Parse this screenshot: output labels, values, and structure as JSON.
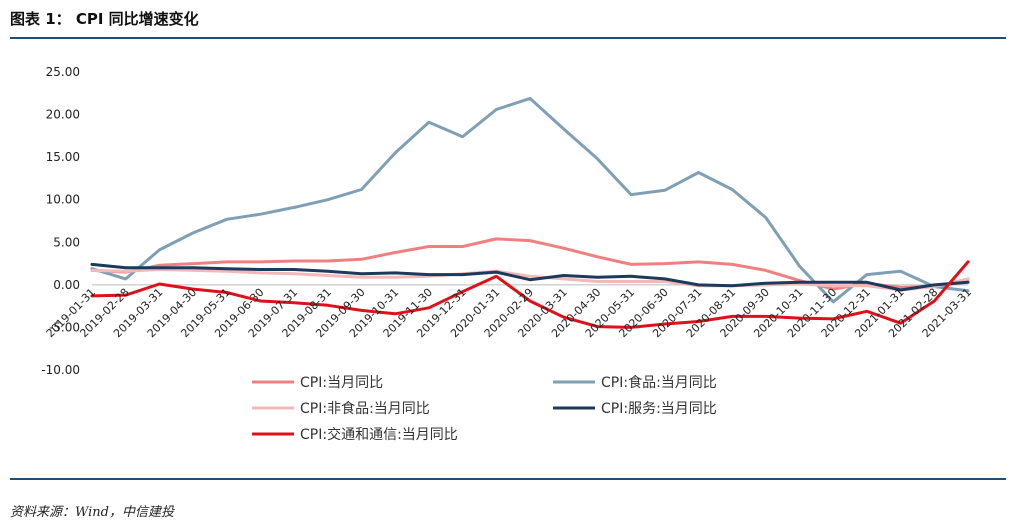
{
  "figure": {
    "title": "图表 1：  CPI 同比增速变化",
    "source": "资料来源：Wind，中信建投"
  },
  "chart_data": {
    "type": "line",
    "title": "CPI 同比增速变化",
    "xlabel": "",
    "ylabel": "",
    "ylim": [
      -10,
      25
    ],
    "yticks": [
      "25.00",
      "20.00",
      "15.00",
      "10.00",
      "5.00",
      "0.00",
      "-5.00",
      "-10.00"
    ],
    "ytick_values": [
      25,
      20,
      15,
      10,
      5,
      0,
      -5,
      -10
    ],
    "grid": false,
    "legend_position": "bottom",
    "categories": [
      "2019-01-31",
      "2019-02-28",
      "2019-03-31",
      "2019-04-30",
      "2019-05-31",
      "2019-06-30",
      "2019-07-31",
      "2019-08-31",
      "2019-09-30",
      "2019-10-31",
      "2019-11-30",
      "2019-12-31",
      "2020-01-31",
      "2020-02-29",
      "2020-03-31",
      "2020-04-30",
      "2020-05-31",
      "2020-06-30",
      "2020-07-31",
      "2020-08-31",
      "2020-09-30",
      "2020-10-31",
      "2020-11-30",
      "2020-12-31",
      "2021-01-31",
      "2021-02-28",
      "2021-03-31"
    ],
    "series": [
      {
        "name": "CPI:当月同比",
        "color": "#f08080",
        "values": [
          1.7,
          1.5,
          2.3,
          2.5,
          2.7,
          2.7,
          2.8,
          2.8,
          3.0,
          3.8,
          4.5,
          4.5,
          5.4,
          5.2,
          4.3,
          3.3,
          2.4,
          2.5,
          2.7,
          2.4,
          1.7,
          0.5,
          -0.5,
          0.2,
          -0.3,
          -0.2,
          0.4
        ]
      },
      {
        "name": "CPI:食品:当月同比",
        "color": "#7f9fb5",
        "values": [
          1.9,
          0.7,
          4.1,
          6.1,
          7.7,
          8.3,
          9.1,
          10.0,
          11.2,
          15.5,
          19.1,
          17.4,
          20.6,
          21.9,
          18.3,
          14.8,
          10.6,
          11.1,
          13.2,
          11.2,
          7.9,
          2.2,
          -2.0,
          1.2,
          1.6,
          -0.2,
          -0.7
        ]
      },
      {
        "name": "CPI:非食品:当月同比",
        "color": "#f5b8b8",
        "values": [
          1.7,
          1.6,
          1.8,
          1.7,
          1.6,
          1.4,
          1.3,
          1.1,
          0.9,
          0.9,
          1.0,
          1.3,
          1.6,
          1.0,
          0.7,
          0.4,
          0.4,
          0.4,
          -0.1,
          -0.1,
          0.0,
          0.1,
          -0.1,
          -0.1,
          -0.6,
          -0.2,
          0.7
        ]
      },
      {
        "name": "CPI:服务:当月同比",
        "color": "#1b3a5c",
        "values": [
          2.4,
          2.0,
          2.0,
          2.0,
          1.9,
          1.8,
          1.8,
          1.6,
          1.3,
          1.4,
          1.2,
          1.2,
          1.5,
          0.6,
          1.1,
          0.9,
          1.0,
          0.7,
          0.0,
          -0.1,
          0.2,
          0.3,
          0.3,
          0.3,
          -0.6,
          0.0,
          0.3
        ]
      },
      {
        "name": "CPI:交通和通信:当月同比",
        "color": "#e0101a",
        "values": [
          -1.3,
          -1.2,
          0.1,
          -0.5,
          -0.9,
          -1.9,
          -2.1,
          -2.4,
          -3.0,
          -3.4,
          -2.7,
          -0.8,
          1.0,
          -1.9,
          -3.8,
          -4.9,
          -5.0,
          -4.6,
          -4.3,
          -3.7,
          -3.7,
          -3.9,
          -4.0,
          -3.1,
          -4.5,
          -1.9,
          2.7
        ]
      }
    ]
  }
}
